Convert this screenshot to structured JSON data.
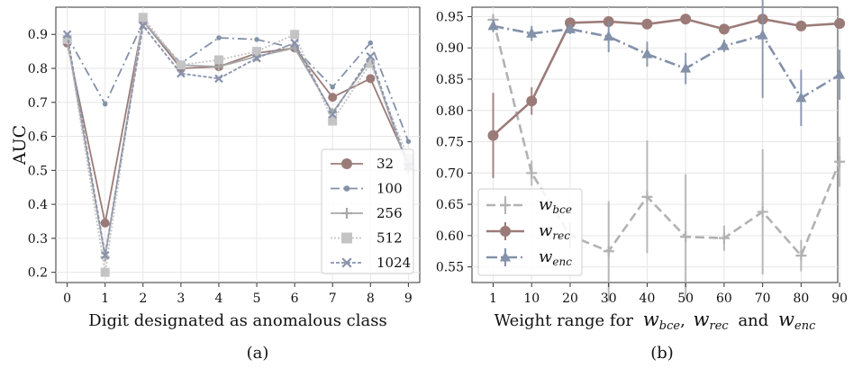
{
  "chart_data": [
    {
      "type": "line",
      "panel_label": "(a)",
      "xlabel": "Digit designated as anomalous class",
      "ylabel": "AUC",
      "x": [
        0,
        1,
        2,
        3,
        4,
        5,
        6,
        7,
        8,
        9
      ],
      "xticks": [
        "0",
        "1",
        "2",
        "3",
        "4",
        "5",
        "6",
        "7",
        "8",
        "9"
      ],
      "yticks": [
        "0.2",
        "0.3",
        "0.4",
        "0.5",
        "0.6",
        "0.7",
        "0.8",
        "0.9"
      ],
      "xlim": [
        -0.3,
        9.3
      ],
      "ylim": [
        0.17,
        0.98
      ],
      "grid": true,
      "legend_position": "lower-right",
      "series": [
        {
          "name": "32",
          "color": "#9b7b78",
          "dash": "",
          "marker": "circle",
          "values": [
            0.875,
            0.345,
            0.94,
            0.8,
            0.805,
            0.845,
            0.86,
            0.715,
            0.77,
            0.52
          ]
        },
        {
          "name": "100",
          "color": "#8391a9",
          "dash": "10,4,2,4",
          "marker": "dot",
          "values": [
            0.895,
            0.695,
            0.935,
            0.815,
            0.89,
            0.885,
            0.86,
            0.745,
            0.875,
            0.585
          ]
        },
        {
          "name": "256",
          "color": "#a8a8a8",
          "dash": "",
          "marker": "plus",
          "values": [
            0.885,
            0.245,
            0.94,
            0.81,
            0.805,
            0.835,
            0.86,
            0.67,
            0.825,
            0.505
          ]
        },
        {
          "name": "512",
          "color": "#c4c4c4",
          "dash": "2,2",
          "marker": "square",
          "values": [
            0.885,
            0.2,
            0.95,
            0.81,
            0.825,
            0.85,
            0.9,
            0.645,
            0.815,
            0.535
          ]
        },
        {
          "name": "1024",
          "color": "#8a93ac",
          "dash": "4,2",
          "marker": "x",
          "values": [
            0.9,
            0.25,
            0.925,
            0.785,
            0.77,
            0.83,
            0.875,
            0.665,
            0.835,
            0.51
          ]
        }
      ]
    },
    {
      "type": "line",
      "panel_label": "(b)",
      "xlabel": "Weight range for",
      "xlabel_symbols": {
        "w": "w",
        "bce": "bce",
        "rec": "rec",
        "enc": "enc",
        "comma": ",",
        "and": "and"
      },
      "ylabel": "",
      "x": [
        1,
        10,
        20,
        30,
        40,
        50,
        60,
        70,
        80,
        90
      ],
      "xticks": [
        "1",
        "10",
        "20",
        "30",
        "40",
        "50",
        "60",
        "70",
        "80",
        "90"
      ],
      "yticks": [
        "0.55",
        "0.60",
        "0.65",
        "0.70",
        "0.75",
        "0.80",
        "0.85",
        "0.90",
        "0.95"
      ],
      "xlim": [
        0,
        9.5
      ],
      "ylim": [
        0.525,
        0.965
      ],
      "grid": true,
      "legend_position": "lower-left",
      "series": [
        {
          "name": "w",
          "sub": "bce",
          "color": "#b2b2b2",
          "dash": "10,5",
          "marker": "plus",
          "values": [
            0.945,
            0.7,
            0.6,
            0.575,
            0.662,
            0.598,
            0.596,
            0.638,
            0.568,
            0.718
          ],
          "err": [
            0.005,
            0.02,
            0.02,
            0.08,
            0.09,
            0.1,
            0.02,
            0.1,
            0.025,
            0.04
          ]
        },
        {
          "name": "w",
          "sub": "rec",
          "color": "#9b7b78",
          "dash": "",
          "marker": "circle",
          "values": [
            0.76,
            0.815,
            0.94,
            0.942,
            0.938,
            0.946,
            0.93,
            0.946,
            0.935,
            0.939
          ],
          "err": [
            0.068,
            0.022,
            0.005,
            0.005,
            0.005,
            0.005,
            0.005,
            0.005,
            0.005,
            0.005
          ]
        },
        {
          "name": "w",
          "sub": "enc",
          "color": "#8391a9",
          "dash": "12,4,2,4",
          "marker": "triangle",
          "values": [
            0.935,
            0.923,
            0.93,
            0.918,
            0.89,
            0.867,
            0.903,
            0.92,
            0.82,
            0.857
          ],
          "err": [
            0.01,
            0.012,
            0.008,
            0.025,
            0.02,
            0.025,
            0.01,
            0.1,
            0.045,
            0.04
          ]
        }
      ]
    }
  ]
}
